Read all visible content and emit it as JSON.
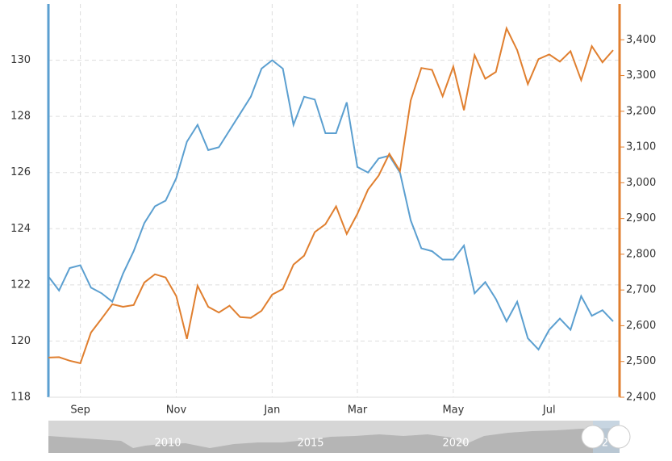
{
  "chart_data": {
    "type": "line",
    "categories": [
      null,
      null,
      null,
      "Sep",
      null,
      null,
      null,
      null,
      null,
      null,
      null,
      null,
      "Nov",
      null,
      null,
      null,
      null,
      null,
      null,
      null,
      null,
      "Jan",
      null,
      null,
      null,
      null,
      null,
      null,
      null,
      "Mar",
      null,
      null,
      null,
      null,
      null,
      null,
      null,
      null,
      "May",
      null,
      null,
      null,
      null,
      null,
      null,
      null,
      null,
      "Jul",
      null,
      null,
      null,
      null,
      null,
      null
    ],
    "series": [
      {
        "name": null,
        "color": "#5b9fd0",
        "axis": "y",
        "values": [
          122.3,
          121.8,
          122.6,
          122.7,
          121.9,
          121.7,
          121.4,
          122.4,
          123.2,
          124.2,
          124.8,
          125.0,
          125.8,
          127.1,
          127.7,
          126.8,
          126.9,
          127.5,
          128.1,
          128.7,
          129.7,
          130.0,
          129.7,
          127.7,
          128.7,
          128.6,
          127.4,
          127.4,
          128.5,
          126.2,
          126.0,
          126.5,
          126.6,
          126.0,
          124.3,
          123.3,
          123.2,
          122.9,
          122.9,
          123.4,
          121.7,
          122.1,
          121.5,
          120.7,
          121.4,
          120.1,
          119.7,
          120.4,
          120.8,
          120.4,
          121.6,
          120.9,
          121.1,
          120.7
        ]
      },
      {
        "name": null,
        "color": "#e07f2f",
        "axis": "y2",
        "values": [
          2511,
          2512,
          2502,
          2495,
          2581,
          2620,
          2660,
          2653,
          2658,
          2721,
          2744,
          2735,
          2683,
          2563,
          2712,
          2653,
          2637,
          2656,
          2624,
          2622,
          2642,
          2687,
          2703,
          2771,
          2796,
          2862,
          2884,
          2934,
          2857,
          2913,
          2981,
          3020,
          3081,
          3033,
          3230,
          3321,
          3316,
          3242,
          3325,
          3203,
          3357,
          3291,
          3310,
          3432,
          3371,
          3276,
          3346,
          3359,
          3339,
          3368,
          3287,
          3382,
          3337,
          3371
        ]
      }
    ],
    "ylim": [
      118,
      132
    ],
    "yticks": [
      118,
      120,
      122,
      124,
      126,
      128,
      130
    ],
    "y2lim": [
      2400,
      3500
    ],
    "y2ticks": [
      {
        "value": 2400,
        "label": "2,400"
      },
      {
        "value": 2500,
        "label": "2,500"
      },
      {
        "value": 2600,
        "label": "2,600"
      },
      {
        "value": 2700,
        "label": "2,700"
      },
      {
        "value": 2800,
        "label": "2,800"
      },
      {
        "value": 2900,
        "label": "2,900"
      },
      {
        "value": 3000,
        "label": "3,000"
      },
      {
        "value": 3100,
        "label": "3,100"
      },
      {
        "value": 3200,
        "label": "3,200"
      },
      {
        "value": 3300,
        "label": "3,300"
      },
      {
        "value": 3400,
        "label": "3,400"
      }
    ],
    "grid": true,
    "navigator": {
      "labels": [
        "2010",
        "2015",
        "2020",
        "2"
      ]
    }
  }
}
